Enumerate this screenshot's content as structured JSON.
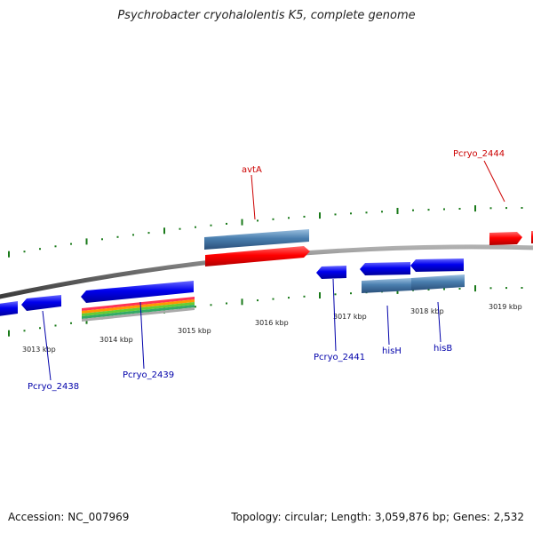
{
  "title": "Psychrobacter cryohalolentis K5, complete genome",
  "footer": {
    "accession": "Accession: NC_007969",
    "summary": "Topology: circular; Length: 3,059,876 bp; Genes: 2,532"
  },
  "colors": {
    "forward_gene": "#ff0000",
    "reverse_gene": "#0000ee",
    "cds_blue": "#4a7faf",
    "tick_green": "#1a7a1a",
    "backbone": "#7a7a7a",
    "label_blue": "#0000aa",
    "label_red": "#cc0000"
  },
  "ruler": {
    "labels": [
      "3013 kbp",
      "3014 kbp",
      "3015 kbp",
      "3016 kbp",
      "3017 kbp",
      "3018 kbp",
      "3019 kbp"
    ]
  },
  "gene_labels": {
    "blue": [
      "Pcryo_2438",
      "Pcryo_2439",
      "Pcryo_2441",
      "hisH",
      "hisB"
    ],
    "red": [
      "avtA",
      "Pcryo_2444"
    ]
  }
}
